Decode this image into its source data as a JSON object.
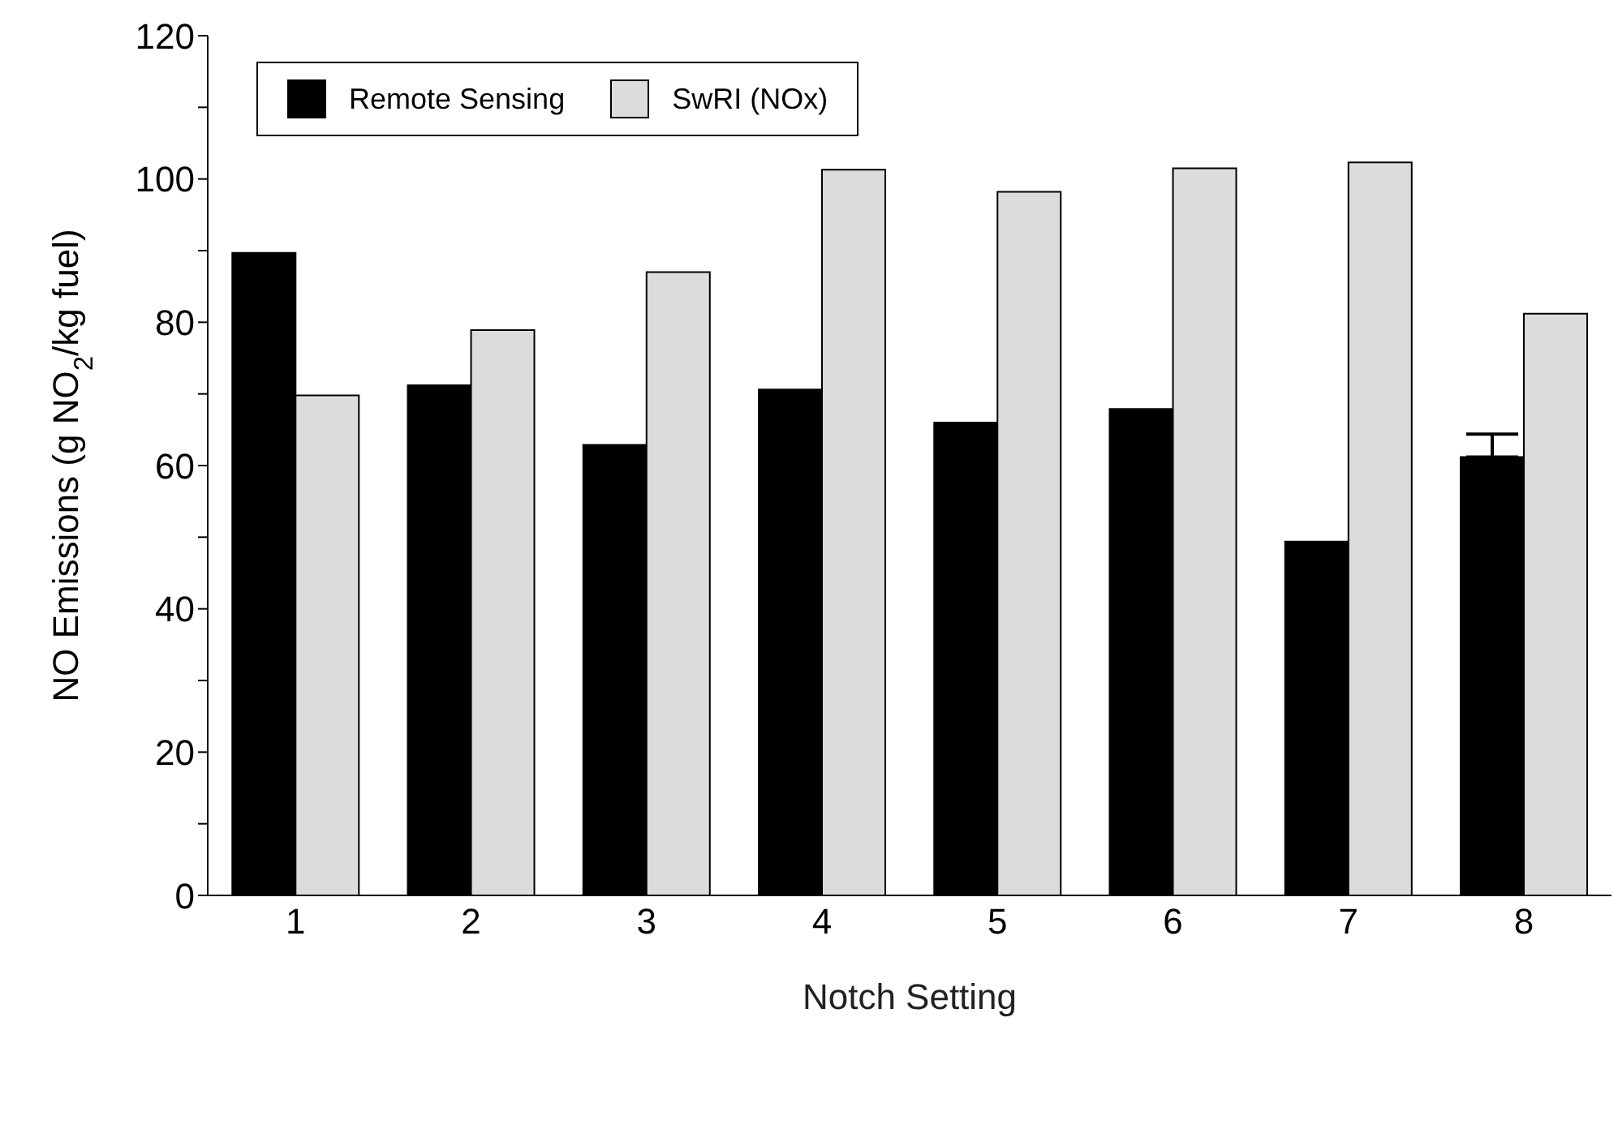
{
  "chart_data": {
    "type": "bar",
    "xlabel": "Notch Setting",
    "ylabel": "NO Emissions (g NO$_{2}$/kg fuel)",
    "categories": [
      "1",
      "2",
      "3",
      "4",
      "5",
      "6",
      "7",
      "8"
    ],
    "series": [
      {
        "name": "Remote Sensing",
        "color": "#000000",
        "values": [
          89.7,
          71.2,
          62.9,
          70.6,
          66,
          67.9,
          49.4,
          61.2
        ],
        "errors": [
          null,
          null,
          null,
          null,
          null,
          null,
          null,
          [
            61.2,
            64.4
          ]
        ]
      },
      {
        "name": "SwRI (NOx)",
        "color": "#dcdcdc",
        "values": [
          69.8,
          78.9,
          87,
          101.3,
          98.2,
          101.5,
          102.3,
          81.2
        ]
      }
    ],
    "ylim": [
      0,
      120
    ],
    "yticks": [
      0,
      {
        "value": 10,
        "label": null
      },
      20,
      {
        "value": 30,
        "label": null
      },
      40,
      {
        "value": 50,
        "label": null
      },
      60,
      {
        "value": 70,
        "label": null
      },
      80,
      {
        "value": 90,
        "label": null
      },
      100,
      {
        "value": 110,
        "label": null
      },
      120
    ],
    "legend": "top left"
  }
}
